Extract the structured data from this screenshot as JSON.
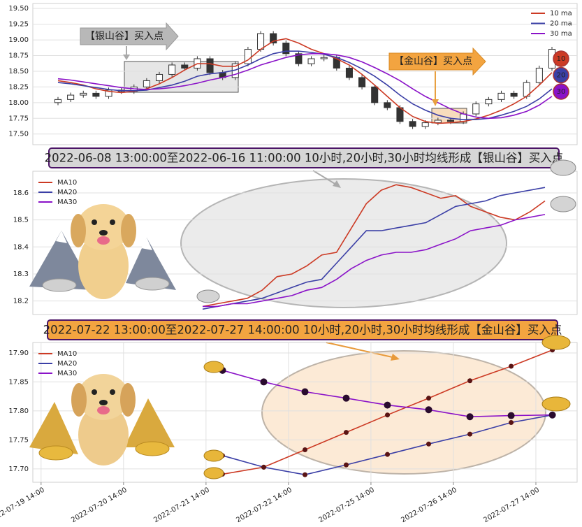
{
  "chart_data": [
    {
      "type": "candlestick",
      "open": [
        18.0,
        18.05,
        18.12,
        18.15,
        18.1,
        18.2,
        18.18,
        18.25,
        18.35,
        18.45,
        18.6,
        18.55,
        18.7,
        18.48,
        18.4,
        18.62,
        18.85,
        19.1,
        18.95,
        18.78,
        18.62,
        18.7,
        18.72,
        18.55,
        18.4,
        18.25,
        18.0,
        17.92,
        17.7,
        17.62,
        17.68,
        17.72,
        17.7,
        17.82,
        17.98,
        18.05,
        18.15,
        18.1,
        18.32,
        18.55
      ],
      "high": [
        18.09,
        18.16,
        18.19,
        18.19,
        18.24,
        18.24,
        18.29,
        18.39,
        18.49,
        18.64,
        18.64,
        18.74,
        18.74,
        18.52,
        18.66,
        18.89,
        19.14,
        19.14,
        18.99,
        18.82,
        18.74,
        18.76,
        18.76,
        18.59,
        18.44,
        18.29,
        18.04,
        17.96,
        17.74,
        17.72,
        17.76,
        17.76,
        17.86,
        18.02,
        18.09,
        18.19,
        18.19,
        18.36,
        18.59,
        18.89
      ],
      "low": [
        17.96,
        18.01,
        18.08,
        18.06,
        18.06,
        18.14,
        18.14,
        18.21,
        18.31,
        18.41,
        18.51,
        18.51,
        18.44,
        18.36,
        18.36,
        18.58,
        18.81,
        18.91,
        18.74,
        18.58,
        18.58,
        18.66,
        18.51,
        18.36,
        18.21,
        17.96,
        17.88,
        17.66,
        17.58,
        17.58,
        17.64,
        17.66,
        17.66,
        17.78,
        17.94,
        18.01,
        18.06,
        18.06,
        18.28,
        18.51
      ],
      "close": [
        18.05,
        18.12,
        18.15,
        18.1,
        18.2,
        18.18,
        18.25,
        18.35,
        18.45,
        18.6,
        18.55,
        18.7,
        18.48,
        18.4,
        18.62,
        18.85,
        19.1,
        18.95,
        18.78,
        18.62,
        18.7,
        18.72,
        18.55,
        18.4,
        18.25,
        18.0,
        17.92,
        17.7,
        17.62,
        17.68,
        17.72,
        17.7,
        17.82,
        17.98,
        18.05,
        18.15,
        18.1,
        18.32,
        18.55,
        18.85
      ],
      "series": [
        {
          "name": "10 ma",
          "color": "#cc3a24",
          "values": [
            18.35,
            18.32,
            18.28,
            18.22,
            18.18,
            18.16,
            18.18,
            18.22,
            18.3,
            18.4,
            18.52,
            18.62,
            18.62,
            18.58,
            18.58,
            18.68,
            18.85,
            18.98,
            19.02,
            18.95,
            18.85,
            18.78,
            18.7,
            18.6,
            18.45,
            18.28,
            18.1,
            17.92,
            17.78,
            17.7,
            17.67,
            17.68,
            17.7,
            17.74,
            17.8,
            17.88,
            17.98,
            18.1,
            18.28,
            18.48
          ]
        },
        {
          "name": "20 ma",
          "color": "#3b3fa6",
          "values": [
            18.32,
            18.3,
            18.27,
            18.24,
            18.21,
            18.19,
            18.19,
            18.2,
            18.24,
            18.28,
            18.34,
            18.42,
            18.46,
            18.48,
            18.52,
            18.6,
            18.7,
            18.78,
            18.82,
            18.82,
            18.8,
            18.77,
            18.72,
            18.64,
            18.54,
            18.42,
            18.28,
            18.12,
            17.98,
            17.88,
            17.8,
            17.75,
            17.73,
            17.73,
            17.75,
            17.8,
            17.86,
            17.94,
            18.06,
            18.22
          ]
        },
        {
          "name": "30 ma",
          "color": "#8a12c8",
          "values": [
            18.38,
            18.36,
            18.33,
            18.3,
            18.27,
            18.24,
            18.22,
            18.21,
            18.22,
            18.24,
            18.27,
            18.31,
            18.36,
            18.4,
            18.45,
            18.52,
            18.6,
            18.66,
            18.72,
            18.76,
            18.78,
            18.78,
            18.76,
            18.72,
            18.65,
            18.56,
            18.46,
            18.35,
            18.22,
            18.1,
            18.0,
            17.9,
            17.82,
            17.77,
            17.75,
            17.76,
            17.8,
            17.86,
            17.96,
            18.1
          ]
        }
      ],
      "ylim": [
        17.33,
        19.58
      ],
      "yticks": [
        {
          "value": 17.5,
          "label": "17.50"
        },
        {
          "value": 17.75,
          "label": "17.75"
        },
        {
          "value": 18,
          "label": "18.00"
        },
        {
          "value": 18.25,
          "label": "18.25"
        },
        {
          "value": 18.5,
          "label": "18.50"
        },
        {
          "value": 18.75,
          "label": "18.75"
        },
        {
          "value": 19,
          "label": "19.00"
        },
        {
          "value": 19.25,
          "label": "19.25"
        },
        {
          "value": 19.5,
          "label": "19.50"
        }
      ],
      "grid": true,
      "legend": "upper right",
      "annotations": [
        "【银山谷】买入点",
        "【金山谷】买入点"
      ],
      "badges": [
        "10",
        "20",
        "30"
      ]
    },
    {
      "type": "line",
      "title": "2022-06-08 13:00:00至2022-06-16 11:00:00 10小时,20小时,30小时均线形成【银山谷】买入点",
      "series": [
        {
          "name": "MA10",
          "color": "#cc3a24",
          "values": [
            18.18,
            18.19,
            18.2,
            18.21,
            18.24,
            18.29,
            18.3,
            18.33,
            18.37,
            18.38,
            18.47,
            18.56,
            18.61,
            18.63,
            18.62,
            18.6,
            18.58,
            18.59,
            18.55,
            18.53,
            18.51,
            18.5,
            18.53,
            18.57
          ]
        },
        {
          "name": "MA20",
          "color": "#3b3fa6",
          "values": [
            18.17,
            18.18,
            18.19,
            18.2,
            18.21,
            18.23,
            18.25,
            18.27,
            18.28,
            18.34,
            18.4,
            18.46,
            18.46,
            18.47,
            18.48,
            18.49,
            18.52,
            18.55,
            18.56,
            18.57,
            18.59,
            18.6,
            18.61,
            18.62
          ]
        },
        {
          "name": "MA30",
          "color": "#8a12c8",
          "values": [
            18.18,
            18.18,
            18.19,
            18.19,
            18.2,
            18.21,
            18.22,
            18.24,
            18.25,
            18.28,
            18.32,
            18.35,
            18.37,
            18.38,
            18.38,
            18.39,
            18.41,
            18.43,
            18.46,
            18.47,
            18.48,
            18.5,
            18.51,
            18.52
          ]
        }
      ],
      "ylim": [
        18.15,
        18.68
      ],
      "yticks": [
        18.2,
        18.3,
        18.4,
        18.5,
        18.6
      ],
      "grid": true,
      "legend": "upper left"
    },
    {
      "type": "line",
      "title": "2022-07-22 13:00:00至2022-07-27 14:00:00 10小时,20小时,30小时均线形成【金山谷】买入点",
      "x": [
        4.4,
        5.4,
        6.4,
        7.4,
        8.4,
        9.4,
        10.4,
        11.4,
        12.4
      ],
      "series": [
        {
          "name": "MA10",
          "color": "#cc3a24",
          "values": [
            17.691,
            17.703,
            17.733,
            17.763,
            17.793,
            17.822,
            17.852,
            17.877,
            17.905
          ]
        },
        {
          "name": "MA20",
          "color": "#3b3fa6",
          "values": [
            17.723,
            17.703,
            17.69,
            17.707,
            17.725,
            17.743,
            17.76,
            17.78,
            17.793
          ]
        },
        {
          "name": "MA30",
          "color": "#8a12c8",
          "values": [
            17.87,
            17.85,
            17.833,
            17.822,
            17.81,
            17.802,
            17.79,
            17.792,
            17.793
          ]
        }
      ],
      "xlim": [
        -0.2,
        13.0
      ],
      "xticks": [
        {
          "value": 0,
          "label": "2022-07-19 14:00"
        },
        {
          "value": 2,
          "label": "2022-07-20 14:00"
        },
        {
          "value": 4,
          "label": "2022-07-21 14:00"
        },
        {
          "value": 6,
          "label": "2022-07-22 14:00"
        },
        {
          "value": 8,
          "label": "2022-07-25 14:00"
        },
        {
          "value": 10,
          "label": "2022-07-26 14:00"
        },
        {
          "value": 12,
          "label": "2022-07-27 14:00"
        }
      ],
      "ylim": [
        17.677,
        17.918
      ],
      "yticks": [
        {
          "value": 17.7,
          "label": "17.70"
        },
        {
          "value": 17.75,
          "label": "17.75"
        },
        {
          "value": 17.8,
          "label": "17.80"
        },
        {
          "value": 17.85,
          "label": "17.85"
        },
        {
          "value": 17.9,
          "label": "17.90"
        }
      ],
      "grid": true,
      "legend": "upper left"
    }
  ]
}
